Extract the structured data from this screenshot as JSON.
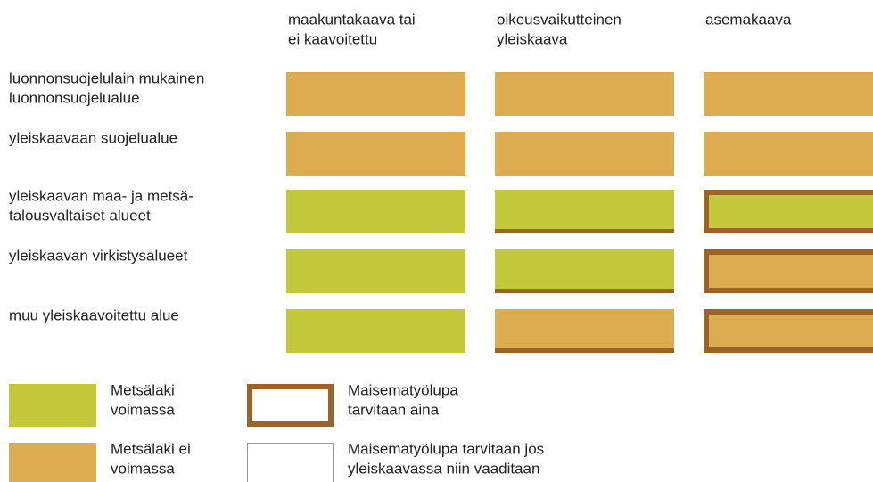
{
  "columns": [
    [
      "maakuntakaava tai",
      "ei kaavoitettu"
    ],
    [
      "oikeusvaikutteinen",
      "yleiskaava"
    ],
    [
      "asemakaava"
    ]
  ],
  "colors": {
    "green": "#c4c93b",
    "orange": "#ddab50",
    "brown": "#9b6327"
  },
  "rows": [
    {
      "label": [
        "luonnonsuojelulain mukainen",
        "luonnonsuojelualue"
      ],
      "cells": [
        {
          "fill": "orange",
          "border": "none"
        },
        {
          "fill": "orange",
          "border": "none"
        },
        {
          "fill": "orange",
          "border": "none"
        }
      ]
    },
    {
      "label": [
        "yleiskaavaan suojelualue"
      ],
      "cells": [
        {
          "fill": "orange",
          "border": "none"
        },
        {
          "fill": "orange",
          "border": "none"
        },
        {
          "fill": "orange",
          "border": "none"
        }
      ]
    },
    {
      "label": [
        "yleiskaavan maa- ja metsä-",
        "talousvaltaiset alueet"
      ],
      "cells": [
        {
          "fill": "green",
          "border": "none"
        },
        {
          "fill": "green",
          "border": "bottom"
        },
        {
          "fill": "green",
          "border": "full"
        }
      ]
    },
    {
      "label": [
        "yleiskaavan virkistysalueet"
      ],
      "cells": [
        {
          "fill": "green",
          "border": "none"
        },
        {
          "fill": "green",
          "border": "bottom"
        },
        {
          "fill": "orange",
          "border": "full"
        }
      ]
    },
    {
      "label": [
        "muu yleiskaavoitettu alue"
      ],
      "cells": [
        {
          "fill": "green",
          "border": "none"
        },
        {
          "fill": "orange",
          "border": "bottom"
        },
        {
          "fill": "orange",
          "border": "full"
        }
      ]
    }
  ],
  "legend": [
    {
      "swatch": "green",
      "text": [
        "Metsälaki",
        "voimassa"
      ]
    },
    {
      "swatch": "brown-frame",
      "text": [
        "Maisematyölupa",
        "tarvitaan aina"
      ]
    },
    {
      "swatch": "orange",
      "text": [
        "Metsälaki ei",
        "voimassa"
      ]
    },
    {
      "swatch": "thin-frame",
      "text": [
        "Maisematyölupa tarvitaan jos",
        "yleiskaavassa niin vaaditaan"
      ]
    }
  ]
}
